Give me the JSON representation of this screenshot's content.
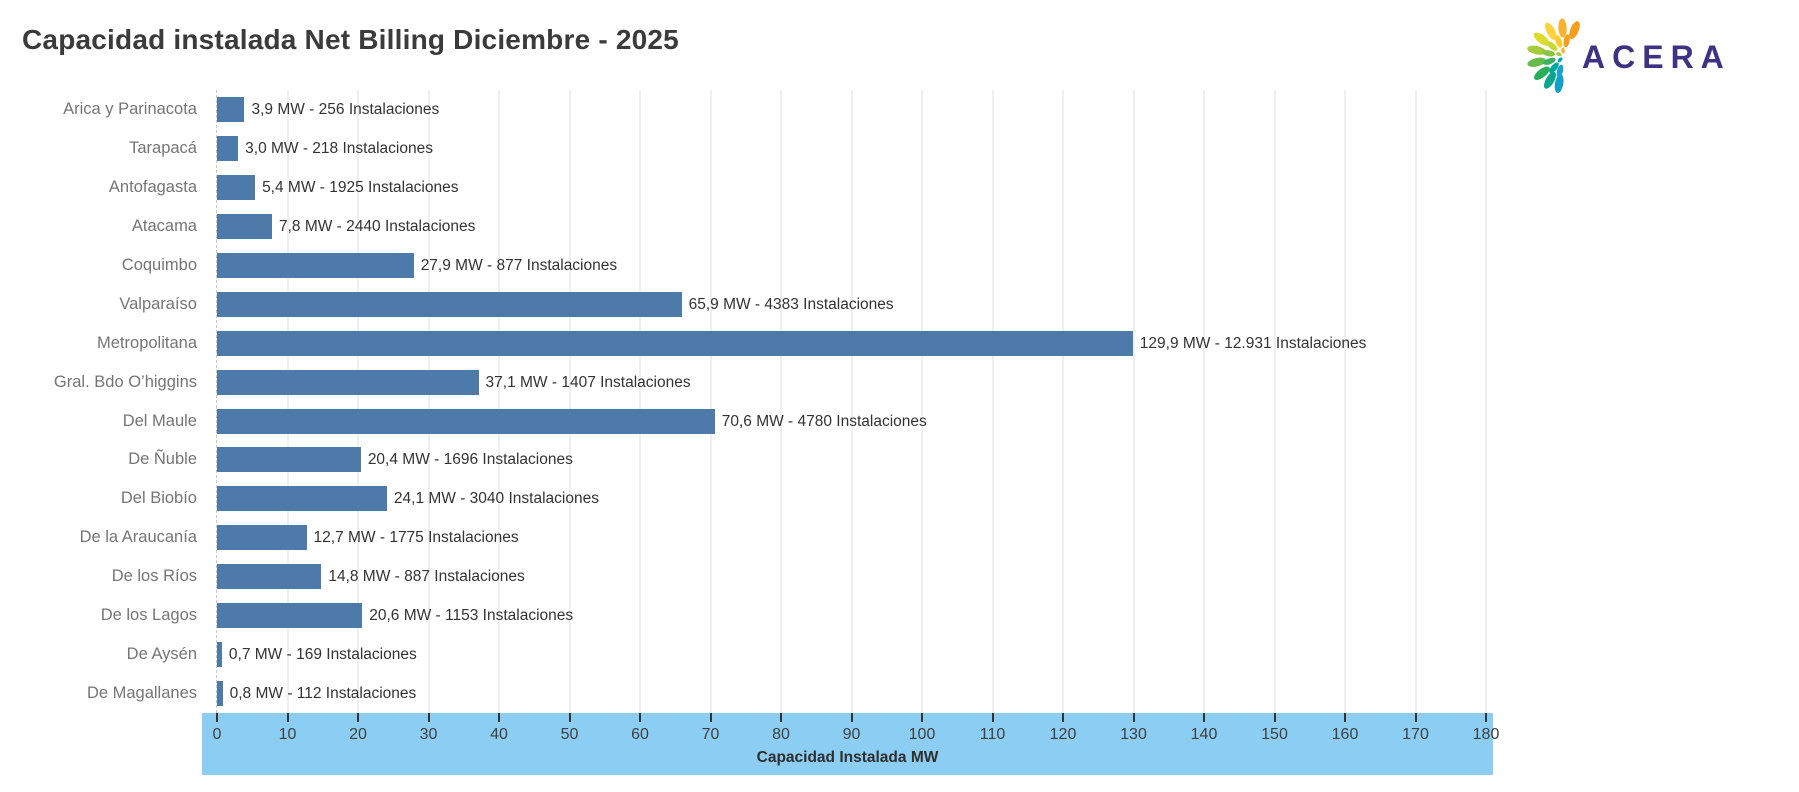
{
  "title": "Capacidad instalada Net Billing Diciembre - 2025",
  "logo": {
    "text": "ACERA",
    "text_color": "#3e3382"
  },
  "chart_data": {
    "type": "bar",
    "orientation": "horizontal",
    "title": "Capacidad instalada Net Billing Diciembre - 2025",
    "xlabel": "Capacidad Instalada MW",
    "ylabel": "",
    "xlim": [
      0,
      180
    ],
    "x_ticks": [
      0,
      10,
      20,
      30,
      40,
      50,
      60,
      70,
      80,
      90,
      100,
      110,
      120,
      130,
      140,
      150,
      160,
      170,
      180
    ],
    "grid": true,
    "bar_color": "#4d7aa9",
    "axis_band_color": "#8ccdf3",
    "categories": [
      "Arica y Parinacota",
      "Tarapacá",
      "Antofagasta",
      "Atacama",
      "Coquimbo",
      "Valparaíso",
      "Metropolitana",
      "Gral. Bdo O’higgins",
      "Del Maule",
      "De Ñuble",
      "Del Biobío",
      "De la Araucanía",
      "De los Ríos",
      "De los Lagos",
      "De Aysén",
      "De Magallanes"
    ],
    "values_mw": [
      3.9,
      3.0,
      5.4,
      7.8,
      27.9,
      65.9,
      129.9,
      37.1,
      70.6,
      20.4,
      24.1,
      12.7,
      14.8,
      20.6,
      0.7,
      0.8
    ],
    "installations": [
      256,
      218,
      1925,
      2440,
      877,
      4383,
      12931,
      1407,
      4780,
      1696,
      3040,
      1775,
      887,
      1153,
      169,
      112
    ],
    "bar_labels": [
      "3,9 MW -  256 Instalaciones",
      "3,0 MW -  218 Instalaciones",
      "5,4 MW -  1925 Instalaciones",
      "7,8 MW -  2440 Instalaciones",
      "27,9 MW -  877 Instalaciones",
      "65,9 MW -  4383 Instalaciones",
      "129,9 MW -  12.931 Instalaciones",
      "37,1 MW -  1407 Instalaciones",
      "70,6 MW -  4780 Instalaciones",
      "20,4 MW -  1696 Instalaciones",
      "24,1 MW -  3040 Instalaciones",
      "12,7 MW -  1775 Instalaciones",
      "14,8 MW -  887 Instalaciones",
      "20,6 MW -  1153 Instalaciones",
      "0,7 MW -  169 Instalaciones",
      "0,8 MW -  112 Instalaciones"
    ]
  }
}
